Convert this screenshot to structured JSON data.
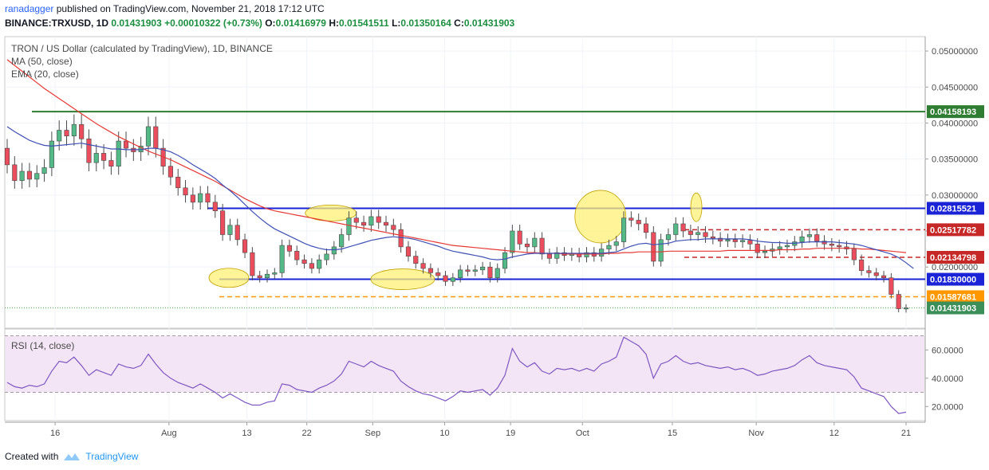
{
  "header": {
    "author": "ranadagger",
    "published_text": "published on TradingView.com, November 21, 2018 17:12 UTC",
    "symbol_line": "BINANCE:TRXUSD, 1D",
    "open_label": "0.01431903",
    "change_label": "+0.00010322 (+0.73%)",
    "o_label": "O:",
    "o_value": "0.01416979",
    "h_label": "H:",
    "h_value": "0.01541511",
    "l_label": "L:",
    "l_value": "0.01350164",
    "c_label": "C:",
    "c_value": "0.01431903"
  },
  "legend": {
    "title": "TRON / US Dollar (calculated by TradingView), 1D, BINANCE",
    "ma": "MA (50, close)",
    "ema": "EMA (20, close)",
    "rsi": "RSI (14, close)"
  },
  "footer": {
    "created_with": "Created with",
    "brand": "TradingView"
  },
  "colors": {
    "up": "#53b987",
    "down": "#eb4d5c",
    "ma50": "#e53935",
    "ema20": "#3f51b5",
    "blue_level": "#1a23d6",
    "green_level": "#2e7d32",
    "orange_level": "#ff9800",
    "rsi_line": "#7e57c2",
    "rsi_fill": "#f3e5f5",
    "highlight": "#fff176"
  },
  "chart_data": {
    "type": "candlestick",
    "price_axis": {
      "min": 0.0115,
      "max": 0.052,
      "ticks": [
        "0.05000000",
        "0.04500000",
        "0.04000000",
        "0.03500000",
        "0.03000000",
        "0.02500000",
        "0.02000000"
      ]
    },
    "x_labels": [
      "16",
      "Aug",
      "13",
      "22",
      "Sep",
      "10",
      "19",
      "Oct",
      "15",
      "Nov",
      "12",
      "21"
    ],
    "level_lines": [
      {
        "name": "resistance-green",
        "value": 0.04158193,
        "label": "0.04158193",
        "style": "solid",
        "color": "#2e7d32"
      },
      {
        "name": "resistance-blue",
        "value": 0.02815521,
        "label": "0.02815521",
        "style": "solid",
        "color": "#1a23d6"
      },
      {
        "name": "range-top",
        "value": 0.02517782,
        "label": "0.02517782",
        "style": "dashed",
        "color": "#c62828"
      },
      {
        "name": "range-bottom",
        "value": 0.02134798,
        "label": "0.02134798",
        "style": "dashed",
        "color": "#c62828"
      },
      {
        "name": "support-blue",
        "value": 0.0183,
        "label": "0.01830000",
        "style": "solid",
        "color": "#1a23d6"
      },
      {
        "name": "support-orange",
        "value": 0.01587681,
        "label": "0.01587681",
        "style": "dashed",
        "color": "#ff9800"
      }
    ],
    "last_price": {
      "value": 0.01431903,
      "label": "0.01431903"
    },
    "candles": [
      [
        0.0365,
        0.0342
      ],
      [
        0.0342,
        0.032
      ],
      [
        0.032,
        0.0333
      ],
      [
        0.0333,
        0.0322
      ],
      [
        0.0322,
        0.033
      ],
      [
        0.033,
        0.0338
      ],
      [
        0.0338,
        0.0375
      ],
      [
        0.0375,
        0.039
      ],
      [
        0.039,
        0.0382
      ],
      [
        0.0382,
        0.0398
      ],
      [
        0.0398,
        0.0378
      ],
      [
        0.0378,
        0.0345
      ],
      [
        0.0345,
        0.0358
      ],
      [
        0.0358,
        0.0348
      ],
      [
        0.0348,
        0.034
      ],
      [
        0.034,
        0.0375
      ],
      [
        0.0375,
        0.0365
      ],
      [
        0.0365,
        0.036
      ],
      [
        0.036,
        0.0368
      ],
      [
        0.0368,
        0.0395
      ],
      [
        0.0395,
        0.0365
      ],
      [
        0.0365,
        0.034
      ],
      [
        0.034,
        0.0325
      ],
      [
        0.0325,
        0.031
      ],
      [
        0.031,
        0.03
      ],
      [
        0.03,
        0.029
      ],
      [
        0.029,
        0.0302
      ],
      [
        0.0302,
        0.029
      ],
      [
        0.029,
        0.0278
      ],
      [
        0.0278,
        0.0245
      ],
      [
        0.0245,
        0.0258
      ],
      [
        0.0258,
        0.0238
      ],
      [
        0.0238,
        0.022
      ],
      [
        0.022,
        0.0188
      ],
      [
        0.0188,
        0.0185
      ],
      [
        0.0185,
        0.019
      ],
      [
        0.019,
        0.0192
      ],
      [
        0.0192,
        0.023
      ],
      [
        0.023,
        0.0222
      ],
      [
        0.0222,
        0.021
      ],
      [
        0.021,
        0.0205
      ],
      [
        0.0205,
        0.0198
      ],
      [
        0.0198,
        0.021
      ],
      [
        0.021,
        0.0218
      ],
      [
        0.0218,
        0.0228
      ],
      [
        0.0228,
        0.0245
      ],
      [
        0.0245,
        0.0268
      ],
      [
        0.0268,
        0.0262
      ],
      [
        0.0262,
        0.0258
      ],
      [
        0.0258,
        0.027
      ],
      [
        0.027,
        0.0262
      ],
      [
        0.0262,
        0.0258
      ],
      [
        0.0258,
        0.0252
      ],
      [
        0.0252,
        0.0228
      ],
      [
        0.0228,
        0.0215
      ],
      [
        0.0215,
        0.0205
      ],
      [
        0.0205,
        0.0198
      ],
      [
        0.0198,
        0.0192
      ],
      [
        0.0192,
        0.0188
      ],
      [
        0.0188,
        0.018
      ],
      [
        0.018,
        0.0185
      ],
      [
        0.0185,
        0.0196
      ],
      [
        0.0196,
        0.0194
      ],
      [
        0.0194,
        0.0196
      ],
      [
        0.0196,
        0.02
      ],
      [
        0.02,
        0.0185
      ],
      [
        0.0185,
        0.0198
      ],
      [
        0.0198,
        0.022
      ],
      [
        0.022,
        0.025
      ],
      [
        0.025,
        0.0232
      ],
      [
        0.0232,
        0.0228
      ],
      [
        0.0228,
        0.024
      ],
      [
        0.024,
        0.0218
      ],
      [
        0.0218,
        0.0212
      ],
      [
        0.0212,
        0.022
      ],
      [
        0.022,
        0.0216
      ],
      [
        0.0216,
        0.0219
      ],
      [
        0.0219,
        0.0214
      ],
      [
        0.0214,
        0.022
      ],
      [
        0.022,
        0.0215
      ],
      [
        0.0215,
        0.0225
      ],
      [
        0.0225,
        0.023
      ],
      [
        0.023,
        0.0235
      ],
      [
        0.0235,
        0.0268
      ],
      [
        0.0268,
        0.0265
      ],
      [
        0.0265,
        0.026
      ],
      [
        0.026,
        0.0248
      ],
      [
        0.0248,
        0.0208
      ],
      [
        0.0208,
        0.0238
      ],
      [
        0.0238,
        0.0245
      ],
      [
        0.0245,
        0.026
      ],
      [
        0.026,
        0.025
      ],
      [
        0.025,
        0.0245
      ],
      [
        0.0245,
        0.0248
      ],
      [
        0.0248,
        0.0242
      ],
      [
        0.0242,
        0.024
      ],
      [
        0.024,
        0.0236
      ],
      [
        0.0236,
        0.0238
      ],
      [
        0.0238,
        0.0235
      ],
      [
        0.0235,
        0.0237
      ],
      [
        0.0237,
        0.0232
      ],
      [
        0.0232,
        0.022
      ],
      [
        0.022,
        0.0222
      ],
      [
        0.0222,
        0.0225
      ],
      [
        0.0225,
        0.0228
      ],
      [
        0.0228,
        0.023
      ],
      [
        0.023,
        0.0235
      ],
      [
        0.0235,
        0.0242
      ],
      [
        0.0242,
        0.0245
      ],
      [
        0.0245,
        0.0236
      ],
      [
        0.0236,
        0.0232
      ],
      [
        0.0232,
        0.023
      ],
      [
        0.023,
        0.0228
      ],
      [
        0.0228,
        0.0225
      ],
      [
        0.0225,
        0.021
      ],
      [
        0.021,
        0.0195
      ],
      [
        0.0195,
        0.0192
      ],
      [
        0.0192,
        0.0188
      ],
      [
        0.0188,
        0.0185
      ],
      [
        0.0185,
        0.0162
      ],
      [
        0.0162,
        0.0142
      ],
      [
        0.01416979,
        0.01431903
      ]
    ],
    "ma50": [
      0.0488,
      0.048,
      0.0472,
      0.0464,
      0.0456,
      0.0448,
      0.0441,
      0.0434,
      0.0427,
      0.042,
      0.0413,
      0.0406,
      0.0399,
      0.0393,
      0.0387,
      0.0381,
      0.0376,
      0.0371,
      0.0366,
      0.0361,
      0.0357,
      0.0353,
      0.0349,
      0.0344,
      0.0339,
      0.0334,
      0.0329,
      0.0324,
      0.0319,
      0.0313,
      0.0307,
      0.0301,
      0.0295,
      0.029,
      0.0285,
      0.0281,
      0.0278,
      0.0276,
      0.0274,
      0.0272,
      0.027,
      0.0268,
      0.0266,
      0.0264,
      0.0262,
      0.026,
      0.0258,
      0.0256,
      0.0254,
      0.0252,
      0.025,
      0.0248,
      0.0246,
      0.0244,
      0.0242,
      0.024,
      0.0238,
      0.0236,
      0.0234,
      0.0232,
      0.023,
      0.0229,
      0.0228,
      0.0227,
      0.0226,
      0.0225,
      0.0224,
      0.0223,
      0.0222,
      0.0221,
      0.022,
      0.022,
      0.0219,
      0.0219,
      0.0219,
      0.0218,
      0.0218,
      0.0218,
      0.0218,
      0.0218,
      0.0218,
      0.0219,
      0.0219,
      0.022,
      0.022,
      0.0221,
      0.0221,
      0.0221,
      0.0221,
      0.0222,
      0.0222,
      0.0222,
      0.0222,
      0.0222,
      0.0222,
      0.0222,
      0.0222,
      0.0223,
      0.0223,
      0.0223,
      0.0223,
      0.0223,
      0.0223,
      0.0223,
      0.0224,
      0.0224,
      0.0224,
      0.0225,
      0.0225,
      0.0226,
      0.0226,
      0.0226,
      0.0226,
      0.0226,
      0.0226,
      0.0225,
      0.0225,
      0.0224,
      0.0223,
      0.0222,
      0.0221,
      0.022
    ],
    "ema20": [
      0.0395,
      0.0388,
      0.0382,
      0.0376,
      0.0372,
      0.0369,
      0.0368,
      0.0369,
      0.037,
      0.0371,
      0.0372,
      0.037,
      0.0368,
      0.0366,
      0.0364,
      0.0364,
      0.0363,
      0.0363,
      0.0363,
      0.0365,
      0.0365,
      0.0363,
      0.036,
      0.0355,
      0.0349,
      0.0342,
      0.0336,
      0.033,
      0.0323,
      0.0314,
      0.0306,
      0.0297,
      0.0287,
      0.0277,
      0.0268,
      0.026,
      0.0253,
      0.0248,
      0.0243,
      0.0238,
      0.0233,
      0.0229,
      0.0226,
      0.0224,
      0.0224,
      0.0225,
      0.0228,
      0.0231,
      0.0234,
      0.0237,
      0.0239,
      0.0241,
      0.0242,
      0.0241,
      0.024,
      0.0238,
      0.0235,
      0.0232,
      0.0229,
      0.0225,
      0.0222,
      0.022,
      0.0218,
      0.0216,
      0.0214,
      0.0211,
      0.021,
      0.0211,
      0.0214,
      0.0216,
      0.0218,
      0.0219,
      0.0219,
      0.0219,
      0.0219,
      0.0219,
      0.0219,
      0.0219,
      0.0219,
      0.0219,
      0.0219,
      0.022,
      0.0221,
      0.0225,
      0.0229,
      0.0232,
      0.0233,
      0.0231,
      0.0232,
      0.0233,
      0.0236,
      0.0237,
      0.0238,
      0.0238,
      0.0239,
      0.0239,
      0.0239,
      0.0239,
      0.0239,
      0.0239,
      0.0238,
      0.0236,
      0.0235,
      0.0234,
      0.0234,
      0.0233,
      0.0233,
      0.0234,
      0.0235,
      0.0235,
      0.0235,
      0.0235,
      0.0234,
      0.0233,
      0.0232,
      0.023,
      0.0227,
      0.0224,
      0.0221,
      0.0218,
      0.0213,
      0.0206,
      0.0198
    ],
    "rsi": {
      "min": 10,
      "max": 72,
      "bands": [
        70,
        30
      ],
      "ticks": [
        "60.0000",
        "40.0000",
        "20.0000"
      ],
      "values": [
        37,
        34,
        33,
        35,
        34,
        36,
        45,
        52,
        51,
        55,
        49,
        42,
        46,
        44,
        42,
        50,
        48,
        47,
        49,
        57,
        50,
        44,
        40,
        37,
        35,
        33,
        36,
        33,
        30,
        26,
        29,
        26,
        23,
        21,
        21,
        23,
        24,
        36,
        35,
        32,
        31,
        30,
        33,
        35,
        38,
        43,
        52,
        50,
        48,
        52,
        49,
        47,
        45,
        38,
        34,
        31,
        29,
        28,
        26,
        24,
        27,
        31,
        30,
        31,
        32,
        28,
        33,
        42,
        61,
        52,
        48,
        51,
        45,
        43,
        47,
        46,
        47,
        45,
        47,
        45,
        50,
        52,
        55,
        69,
        66,
        63,
        57,
        40,
        50,
        52,
        56,
        52,
        50,
        51,
        49,
        48,
        47,
        48,
        46,
        47,
        45,
        42,
        43,
        45,
        46,
        47,
        49,
        53,
        56,
        51,
        49,
        48,
        47,
        46,
        41,
        33,
        31,
        29,
        27,
        20,
        15,
        16
      ]
    }
  }
}
